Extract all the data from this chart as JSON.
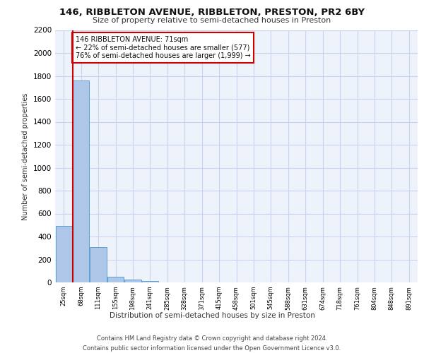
{
  "title1": "146, RIBBLETON AVENUE, RIBBLETON, PRESTON, PR2 6BY",
  "title2": "Size of property relative to semi-detached houses in Preston",
  "xlabel": "Distribution of semi-detached houses by size in Preston",
  "ylabel": "Number of semi-detached properties",
  "property_label": "146 RIBBLETON AVENUE: 71sqm",
  "annotation_line1": "← 22% of semi-detached houses are smaller (577)",
  "annotation_line2": "76% of semi-detached houses are larger (1,999) →",
  "footer": "Contains HM Land Registry data © Crown copyright and database right 2024.\nContains public sector information licensed under the Open Government Licence v3.0.",
  "categories": [
    "25sqm",
    "68sqm",
    "111sqm",
    "155sqm",
    "198sqm",
    "241sqm",
    "285sqm",
    "328sqm",
    "371sqm",
    "415sqm",
    "458sqm",
    "501sqm",
    "545sqm",
    "588sqm",
    "631sqm",
    "674sqm",
    "718sqm",
    "761sqm",
    "804sqm",
    "848sqm",
    "891sqm"
  ],
  "values": [
    490,
    1760,
    310,
    50,
    25,
    10,
    0,
    0,
    0,
    0,
    0,
    0,
    0,
    0,
    0,
    0,
    0,
    0,
    0,
    0,
    0
  ],
  "bar_color": "#aec6e8",
  "bar_edge_color": "#5a9fd4",
  "vline_color": "#cc0000",
  "vline_x_index": 0.53,
  "annotation_box_color": "#cc0000",
  "background_color": "#eef2fb",
  "grid_color": "#c8d4ee",
  "ylim": [
    0,
    2200
  ],
  "yticks": [
    0,
    200,
    400,
    600,
    800,
    1000,
    1200,
    1400,
    1600,
    1800,
    2000,
    2200
  ]
}
